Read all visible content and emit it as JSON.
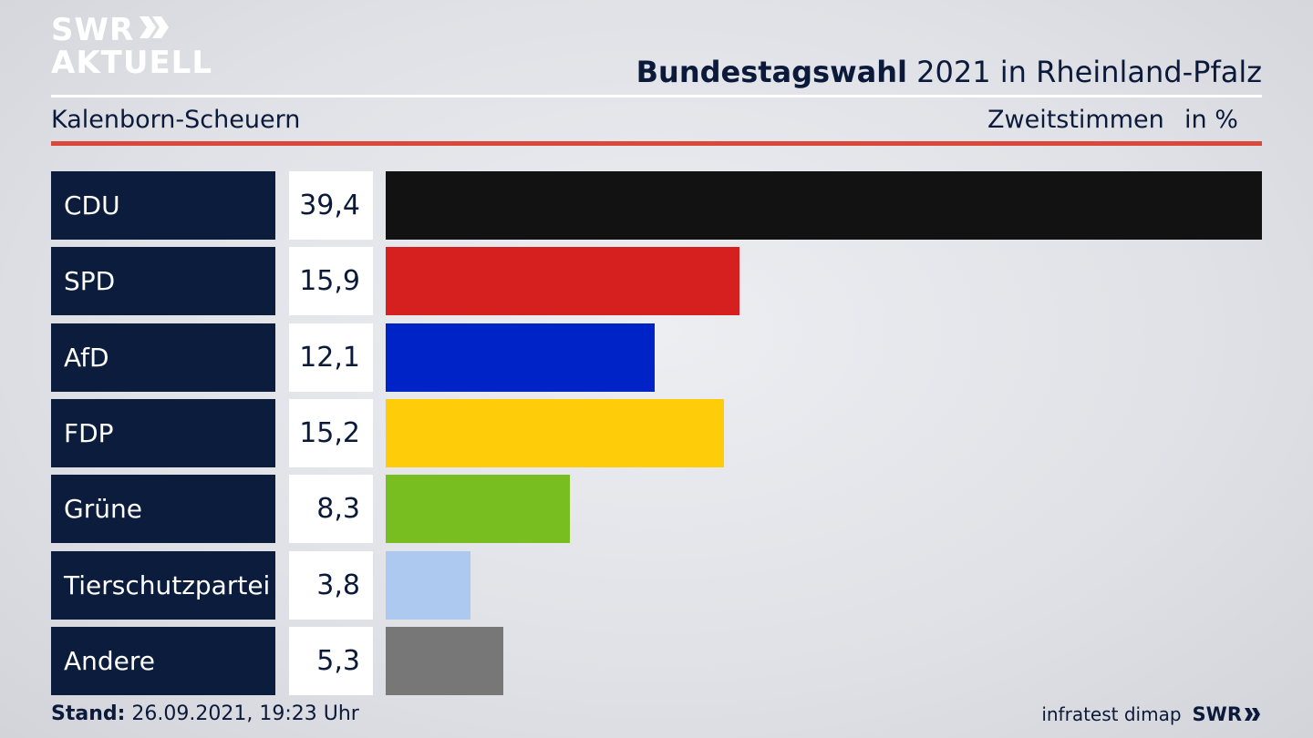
{
  "logo": {
    "line1": "SWR",
    "line2": "AKTUELL"
  },
  "header": {
    "title_bold": "Bundestagswahl",
    "title_rest": " 2021 in Rheinland-Pfalz",
    "region": "Kalenborn-Scheuern",
    "metric": "Zweitstimmen",
    "unit": "in %"
  },
  "chart_data": {
    "type": "bar",
    "orientation": "horizontal",
    "categories": [
      "CDU",
      "SPD",
      "AfD",
      "FDP",
      "Grüne",
      "Tierschutzpartei",
      "Andere"
    ],
    "values": [
      39.4,
      15.9,
      12.1,
      15.2,
      8.3,
      3.8,
      5.3
    ],
    "value_labels": [
      "39,4",
      "15,9",
      "12,1",
      "15,2",
      "8,3",
      "3,8",
      "5,3"
    ],
    "colors": [
      "#121212",
      "#d62020",
      "#0023c8",
      "#ffcc0a",
      "#78be20",
      "#adc9ef",
      "#777777"
    ],
    "xlim": [
      0,
      39.4
    ],
    "grid": false,
    "legend": "none"
  },
  "footer": {
    "stand_label": "Stand:",
    "stand_value": " 26.09.2021, 19:23 Uhr",
    "source": "infratest dimap",
    "brand": "SWR"
  }
}
